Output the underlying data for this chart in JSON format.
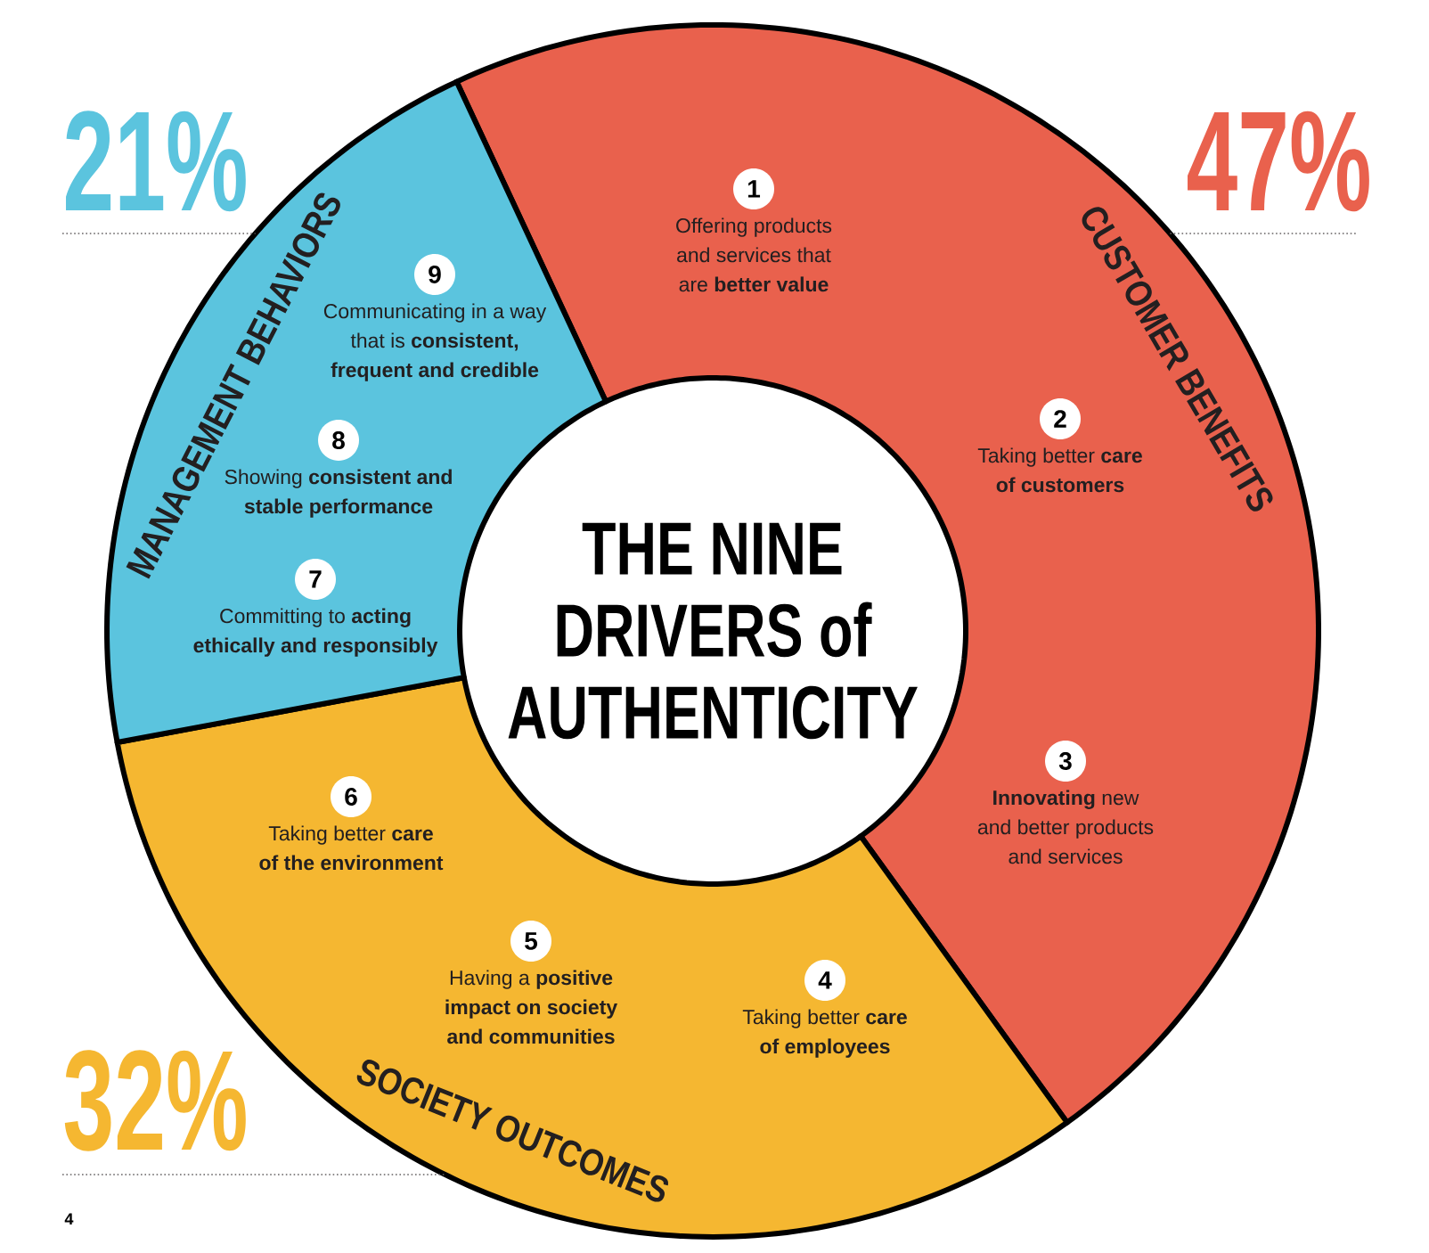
{
  "chart_data": {
    "type": "donut",
    "title": "THE NINE DRIVERS of AUTHENTICITY",
    "categories": [
      "CUSTOMER BENEFITS",
      "SOCIETY OUTCOMES",
      "MANAGEMENT BEHAVIORS"
    ],
    "values": [
      47,
      32,
      21
    ],
    "colors": [
      "#e9614d",
      "#f5b731",
      "#5bc4de"
    ],
    "value_labels": [
      "47%",
      "32%",
      "21%"
    ],
    "annotations": [
      "1",
      "Offering products and services that are **better value**",
      "2",
      "Taking better **care of customers**",
      "3",
      "**Innovating** new and better products and services",
      "4",
      "Taking better **care of employees**",
      "5",
      "Having a **positive impact on society and communities**",
      "6",
      "Taking better **care of the environment**",
      "7",
      "Committing to **acting ethically and responsibly**",
      "8",
      "Showing **consistent and stable performance**",
      "9",
      "Communicating in a way that is **consistent, frequent and credible**",
      "4"
    ]
  }
}
